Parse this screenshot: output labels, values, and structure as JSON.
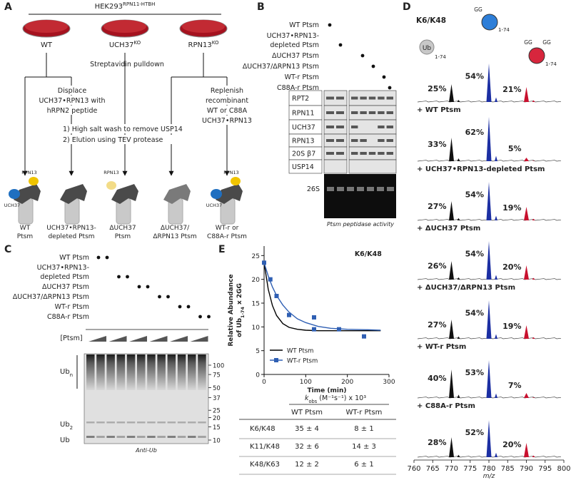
{
  "panel_a": {
    "letter": "A",
    "cell_line": "HEK293",
    "cell_line_sup": "RPN11-HTBH",
    "dishes": [
      {
        "name": "WT"
      },
      {
        "name": "UCH37",
        "sup": "KO"
      },
      {
        "name": "RPN13",
        "sup": "KO"
      }
    ],
    "pulldown": "Streptavidin pulldown",
    "displace": [
      "Displace",
      "UCH37•RPN13 with",
      "hRPN2 peptide"
    ],
    "replenish": [
      "Replenish",
      "recombinant",
      "WT or C88A",
      "UCH37•RPN13"
    ],
    "steps": [
      "1) High salt wash to remove USP14",
      "2) Elution using TEV protease"
    ],
    "icon_labels_wt": [
      "RPN13",
      "UCH37"
    ],
    "icon_labels_duch37": [
      "RPN13"
    ],
    "icon_labels_wtr": [
      "RPN13",
      "UCH37"
    ],
    "products": [
      [
        "WT",
        "Ptsm"
      ],
      [
        "UCH37•RPN13-",
        "depleted Ptsm"
      ],
      [
        "ΔUCH37",
        "Ptsm"
      ],
      [
        "ΔUCH37/",
        "ΔRPN13 Ptsm"
      ],
      [
        "WT-r or",
        "C88A-r Ptsm"
      ]
    ]
  },
  "panel_b": {
    "letter": "B",
    "samples": [
      [
        "WT Ptsm"
      ],
      [
        "UCH37•RPN13-",
        "depleted Ptsm"
      ],
      [
        "ΔUCH37 Ptsm"
      ],
      [
        "ΔUCH37/ΔRPN13 Ptsm"
      ],
      [
        "WT-r Ptsm"
      ],
      [
        "C88A-r Ptsm"
      ]
    ],
    "blots": [
      "RPT2",
      "RPN11",
      "UCH37",
      "RPN13",
      "20S β7",
      "USP14"
    ],
    "gel": "26S",
    "caption": "Ptsm peptidase activity"
  },
  "panel_c": {
    "letter": "C",
    "samples": [
      [
        "WT Ptsm"
      ],
      [
        "UCH37•RPN13-",
        "depleted Ptsm"
      ],
      [
        "ΔUCH37 Ptsm"
      ],
      [
        "ΔUCH37/ΔRPN13 Ptsm"
      ],
      [
        "WT-r Ptsm"
      ],
      [
        "C88A-r Ptsm"
      ]
    ],
    "ptsm": "[Ptsm]",
    "ubn": {
      "text": "Ub",
      "sub": "n"
    },
    "ub2": {
      "text": "Ub",
      "sub": "2"
    },
    "ub": "Ub",
    "markers": [
      100,
      75,
      50,
      37,
      25,
      20,
      15,
      10
    ],
    "caption": "Anti-Ub"
  },
  "panel_d": {
    "letter": "D",
    "linkage": "K6/K48",
    "icons": {
      "ub": "Ub",
      "range": "1-74",
      "gg": "GG"
    },
    "spectra": [
      {
        "values": [
          25,
          54,
          21
        ],
        "value_labels": [
          "25%",
          "54%",
          "21%"
        ]
      },
      {
        "label": "+ WT Ptsm",
        "values": [
          33,
          62,
          5
        ],
        "value_labels": [
          "33%",
          "62%",
          "5%"
        ]
      },
      {
        "label": "+ UCH37•RPN13-depleted Ptsm",
        "values": [
          27,
          54,
          19
        ],
        "value_labels": [
          "27%",
          "54%",
          "19%"
        ]
      },
      {
        "label": "+ ΔUCH37 Ptsm",
        "values": [
          26,
          54,
          20
        ],
        "value_labels": [
          "26%",
          "54%",
          "20%"
        ]
      },
      {
        "label": "+ ΔUCH37/ΔRPN13 Ptsm",
        "values": [
          27,
          54,
          19
        ],
        "value_labels": [
          "27%",
          "54%",
          "19%"
        ]
      },
      {
        "label": "+ WT-r Ptsm",
        "values": [
          40,
          53,
          7
        ],
        "value_labels": [
          "40%",
          "53%",
          "7%"
        ]
      },
      {
        "label": "+ C88A-r Ptsm",
        "values": [
          28,
          52,
          20
        ],
        "value_labels": [
          "28%",
          "52%",
          "20%"
        ]
      }
    ],
    "xticks": [
      760,
      765,
      770,
      775,
      780,
      785,
      790,
      795,
      800
    ],
    "xlim": [
      760,
      800
    ],
    "xlabel": "m/z"
  },
  "panel_e": {
    "letter": "E",
    "chart": {
      "type": "scatter",
      "annotation": "K6/K48",
      "ylabel_line1": "Relative Abundance",
      "ylabel_line2": {
        "text": "of Ub",
        "sub": "1-74",
        "rest": " x 2GG"
      },
      "xlabel": "Time (min)",
      "xlim": [
        0,
        300
      ],
      "ylim": [
        0,
        27
      ],
      "xticks": [
        0,
        100,
        200,
        300
      ],
      "yticks": [
        0,
        5,
        10,
        15,
        20,
        25
      ],
      "legend": "lower left",
      "series": [
        {
          "name": "WT Ptsm",
          "color": "#000000",
          "fit_x": [
            0,
            10,
            20,
            30,
            45,
            60,
            80,
            100,
            130,
            160,
            200,
            250,
            280
          ],
          "fit_values": [
            23.5,
            17.9,
            14.5,
            12.4,
            10.7,
            9.9,
            9.5,
            9.3,
            9.2,
            9.2,
            9.2,
            9.2,
            9.2
          ]
        },
        {
          "name": "WT-r Ptsm",
          "color": "#2f5fb3",
          "x": [
            0,
            15,
            30,
            60,
            120,
            120,
            180,
            240
          ],
          "values": [
            23.5,
            20,
            16.5,
            12.5,
            12,
            9.5,
            9.5,
            8
          ],
          "fit_x": [
            0,
            10,
            20,
            30,
            45,
            60,
            80,
            100,
            130,
            160,
            200,
            250,
            280
          ],
          "fit_values": [
            23.5,
            20.7,
            18.4,
            16.6,
            14.6,
            13.1,
            11.7,
            10.9,
            10.1,
            9.7,
            9.5,
            9.4,
            9.3
          ]
        }
      ]
    },
    "table": {
      "header_k": "k",
      "header_sub": "obs",
      "header_rest": " (M⁻¹s⁻¹) x 10³",
      "columns": [
        "WT Ptsm",
        "WT-r Ptsm"
      ],
      "rows": [
        [
          "K6/K48",
          "35 ± 4",
          "8 ± 1"
        ],
        [
          "K11/K48",
          "32 ± 6",
          "14 ± 3"
        ],
        [
          "K48/K63",
          "12 ± 2",
          "6 ± 1"
        ]
      ]
    }
  }
}
